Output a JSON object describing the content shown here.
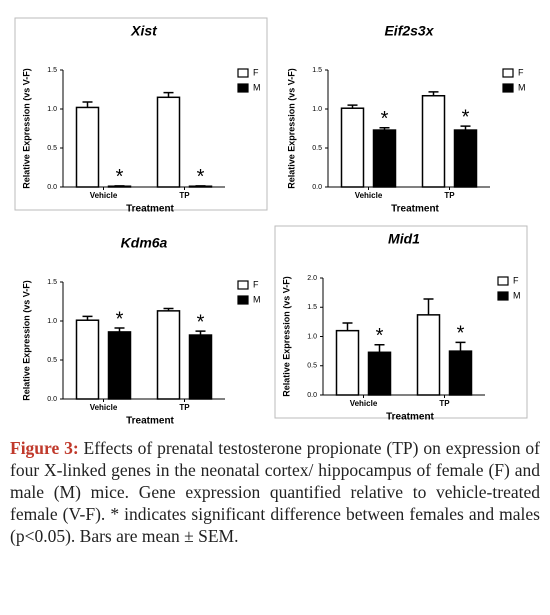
{
  "chart_data": [
    {
      "type": "bar",
      "title": "Xist",
      "y_label": "Relative Expression (vs V-F)",
      "x_label": "Treatment",
      "categories": [
        "Vehicle",
        "TP"
      ],
      "series": [
        {
          "name": "F",
          "color": "#ffffff",
          "values": [
            1.02,
            1.15
          ],
          "errors": [
            0.07,
            0.06
          ]
        },
        {
          "name": "M",
          "color": "#000000",
          "values": [
            0.01,
            0.01
          ],
          "errors": [
            0.004,
            0.004
          ],
          "marks": [
            "*",
            "*"
          ]
        }
      ],
      "ylim": [
        0,
        1.5
      ],
      "yticks": [
        {
          "value": 0,
          "label": "0.0"
        },
        0.5,
        {
          "value": 1,
          "label": "1.0"
        },
        1.5
      ],
      "boxed": true
    },
    {
      "type": "bar",
      "title": "Eif2s3x",
      "y_label": "Relative Expression (vs V-F)",
      "x_label": "Treatment",
      "categories": [
        "Vehicle",
        "TP"
      ],
      "series": [
        {
          "name": "F",
          "color": "#ffffff",
          "values": [
            1.01,
            1.17
          ],
          "errors": [
            0.04,
            0.05
          ]
        },
        {
          "name": "M",
          "color": "#000000",
          "values": [
            0.73,
            0.73
          ],
          "errors": [
            0.03,
            0.05
          ],
          "marks": [
            "*",
            "*"
          ]
        }
      ],
      "ylim": [
        0,
        1.5
      ],
      "yticks": [
        {
          "value": 0,
          "label": "0.0"
        },
        0.5,
        {
          "value": 1,
          "label": "1.0"
        },
        1.5
      ],
      "boxed": false
    },
    {
      "type": "bar",
      "title": "Kdm6a",
      "y_label": "Relative Expression (vs V-F)",
      "x_label": "Treatment",
      "categories": [
        "Vehicle",
        "TP"
      ],
      "series": [
        {
          "name": "F",
          "color": "#ffffff",
          "values": [
            1.01,
            1.13
          ],
          "errors": [
            0.05,
            0.03
          ]
        },
        {
          "name": "M",
          "color": "#000000",
          "values": [
            0.86,
            0.82
          ],
          "errors": [
            0.05,
            0.05
          ],
          "marks": [
            "*",
            "*"
          ]
        }
      ],
      "ylim": [
        0,
        1.5
      ],
      "yticks": [
        {
          "value": 0,
          "label": "0.0"
        },
        0.5,
        {
          "value": 1,
          "label": "1.0"
        },
        1.5
      ],
      "boxed": false
    },
    {
      "type": "bar",
      "title": "Mid1",
      "y_label": "Relative Expression (vs V-F)",
      "x_label": "Treatment",
      "categories": [
        "Vehicle",
        "TP"
      ],
      "series": [
        {
          "name": "F",
          "color": "#ffffff",
          "values": [
            1.1,
            1.37
          ],
          "errors": [
            0.13,
            0.27
          ]
        },
        {
          "name": "M",
          "color": "#000000",
          "values": [
            0.73,
            0.75
          ],
          "errors": [
            0.13,
            0.15
          ],
          "marks": [
            "*",
            "*"
          ]
        }
      ],
      "ylim": [
        0,
        2
      ],
      "yticks": [
        {
          "value": 0,
          "label": "0.0"
        },
        0.5,
        {
          "value": 1,
          "label": "1.0"
        },
        1.5,
        {
          "value": 2,
          "label": "2.0"
        }
      ],
      "boxed": true
    }
  ],
  "caption": {
    "label": "Figure 3:",
    "text": "Effects of prenatal testosterone propionate (TP) on expression of four X-linked genes in the neonatal cortex/ hippocampus of female (F) and male (M) mice. Gene expression quantified relative to vehicle-treated female (V-F). * indicates significant difference between females and males (p<0.05). Bars are mean ± SEM."
  }
}
